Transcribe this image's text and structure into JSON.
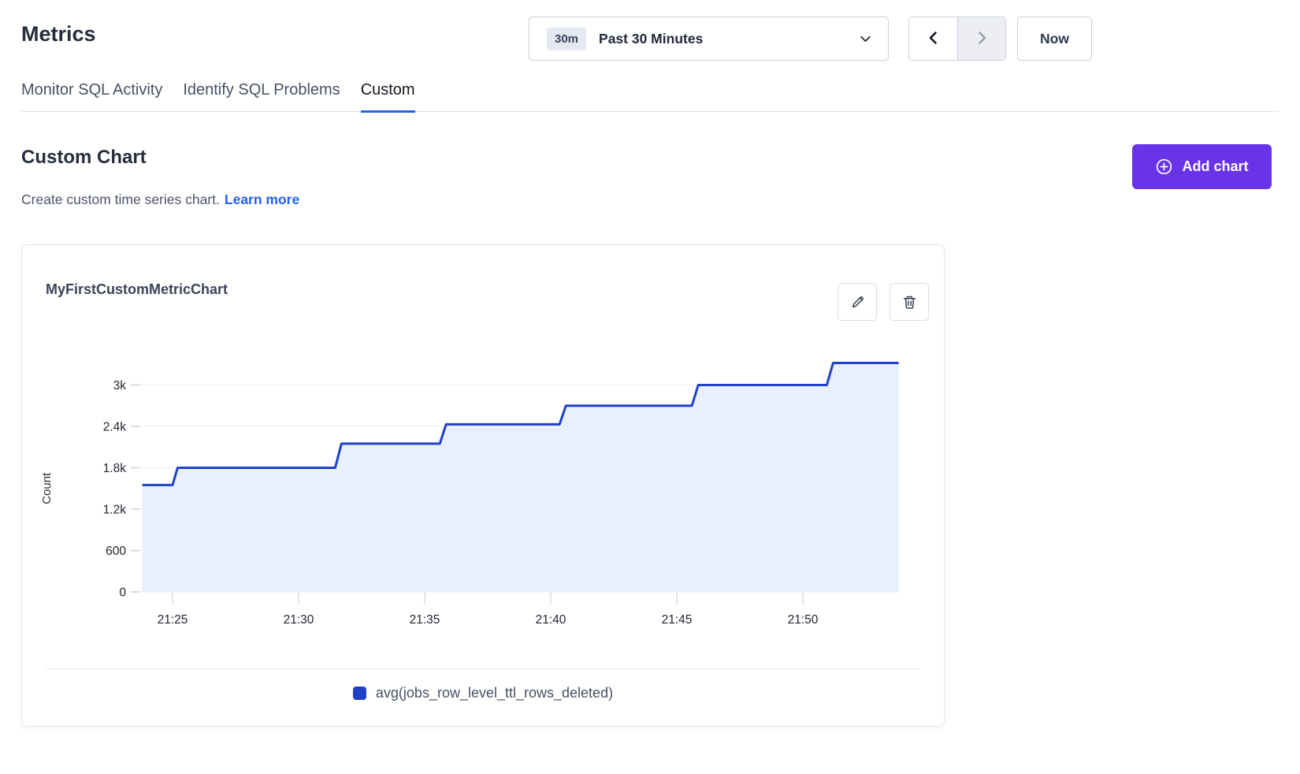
{
  "header": {
    "title": "Metrics"
  },
  "toolbar": {
    "range_badge": "30m",
    "range_label": "Past 30 Minutes",
    "now_label": "Now",
    "prev_icon": "chevron-left-icon",
    "next_icon": "chevron-right-icon",
    "next_disabled": true
  },
  "tabs": [
    {
      "label": "Monitor SQL Activity",
      "active": false
    },
    {
      "label": "Identify SQL Problems",
      "active": false
    },
    {
      "label": "Custom",
      "active": true
    }
  ],
  "section": {
    "title": "Custom Chart",
    "subtitle": "Create custom time series chart.",
    "learn_more_label": "Learn more",
    "add_chart_label": "Add chart",
    "add_chart_icon": "plus-circle-icon"
  },
  "card": {
    "edit_icon": "pencil-icon",
    "delete_icon": "trash-icon"
  },
  "colors": {
    "accent_purple": "#6933e8",
    "link_blue": "#2161f2",
    "tab_underline_blue": "#2463eb",
    "series_blue": "#1e41c8",
    "series_fill": "#e9effc"
  },
  "chart_data": {
    "type": "area",
    "step": true,
    "title": "MyFirstCustomMetricChart",
    "ylabel": "Count",
    "xlabel": "",
    "ylim": [
      0,
      3600
    ],
    "grid": "horizontal",
    "legend_position": "bottom",
    "yticks": [
      {
        "v": 0,
        "label": "0"
      },
      {
        "v": 600,
        "label": "600"
      },
      {
        "v": 1200,
        "label": "1.2k"
      },
      {
        "v": 1800,
        "label": "1.8k"
      },
      {
        "v": 2400,
        "label": "2.4k"
      },
      {
        "v": 3000,
        "label": "3k"
      }
    ],
    "xticks": [
      {
        "m": 25,
        "label": "21:25"
      },
      {
        "m": 30,
        "label": "21:30"
      },
      {
        "m": 35,
        "label": "21:35"
      },
      {
        "m": 40,
        "label": "21:40"
      },
      {
        "m": 45,
        "label": "21:45"
      },
      {
        "m": 50,
        "label": "21:50"
      }
    ],
    "x_range_minutes": [
      23.8,
      53.8
    ],
    "x_axis_hour": "21:00",
    "series": [
      {
        "name": "avg(jobs_row_level_ttl_rows_deleted)",
        "color": "#1e41c8",
        "fill": "#e9effc",
        "points": [
          {
            "m": 23.8,
            "v": 1550
          },
          {
            "m": 25.0,
            "v": 1550
          },
          {
            "m": 25.2,
            "v": 1800
          },
          {
            "m": 31.45,
            "v": 1800
          },
          {
            "m": 31.7,
            "v": 2150
          },
          {
            "m": 35.6,
            "v": 2150
          },
          {
            "m": 35.85,
            "v": 2430
          },
          {
            "m": 40.35,
            "v": 2430
          },
          {
            "m": 40.6,
            "v": 2700
          },
          {
            "m": 45.6,
            "v": 2700
          },
          {
            "m": 45.85,
            "v": 3000
          },
          {
            "m": 50.95,
            "v": 3000
          },
          {
            "m": 51.2,
            "v": 3320
          },
          {
            "m": 53.8,
            "v": 3320
          }
        ]
      }
    ]
  }
}
